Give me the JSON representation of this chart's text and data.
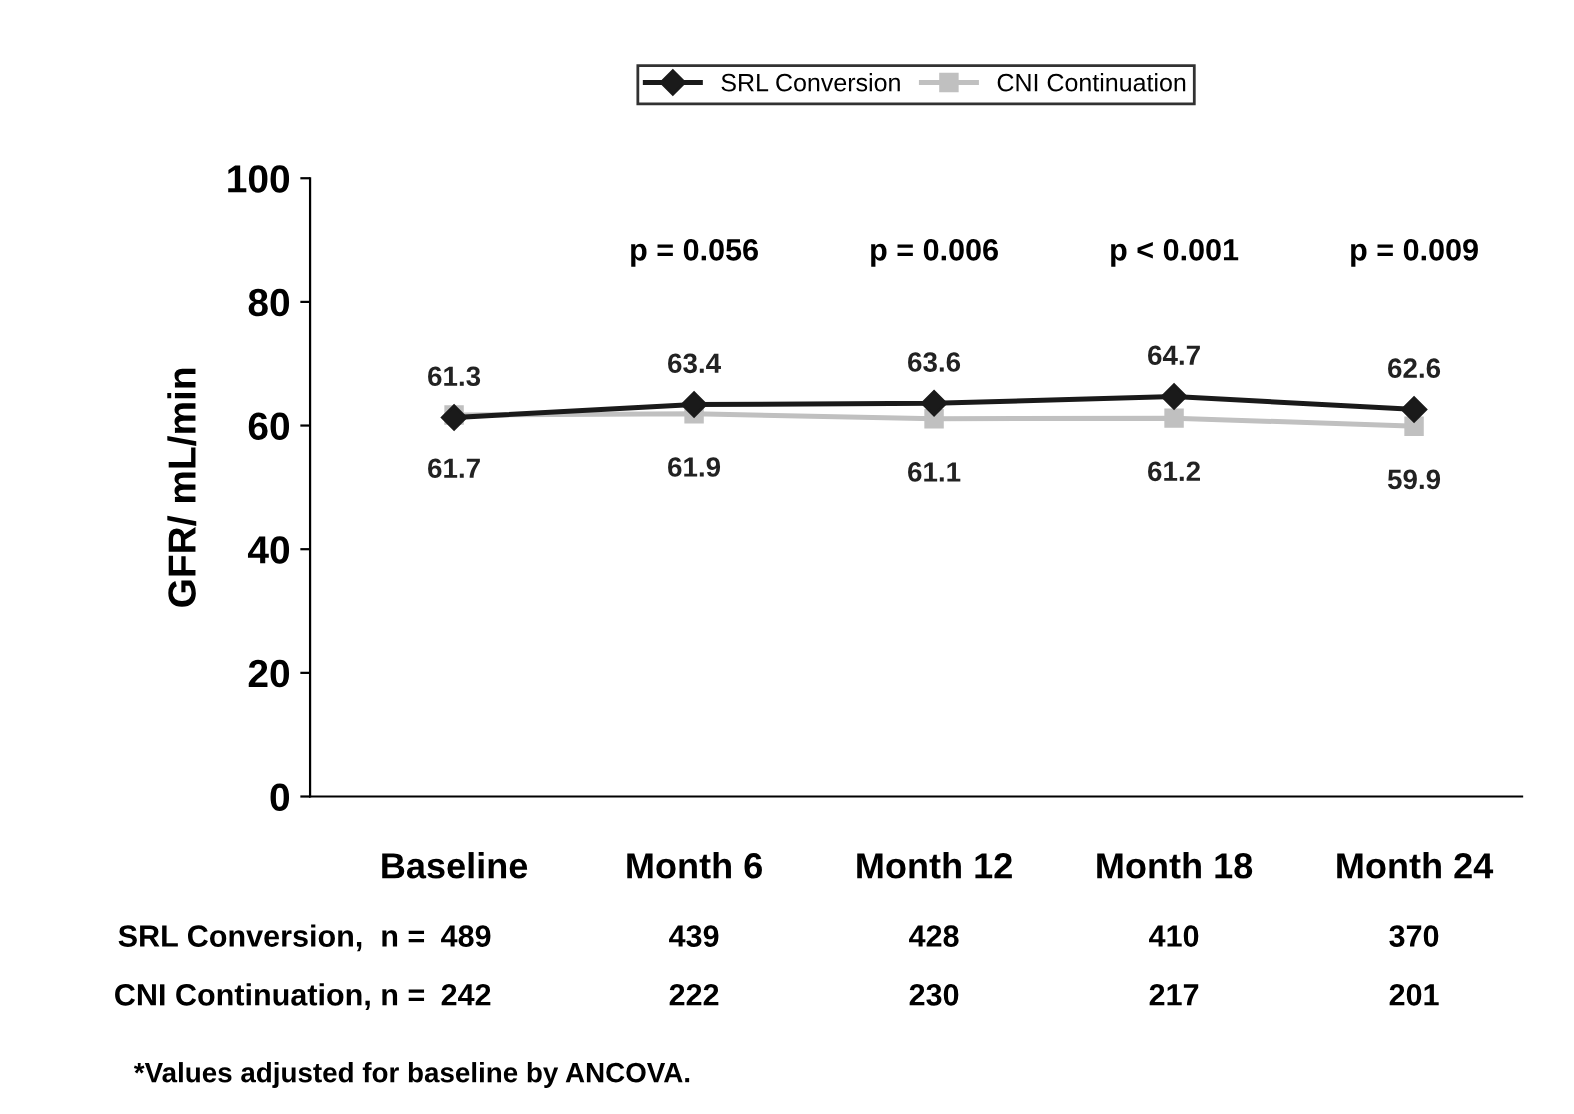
{
  "chart_data": {
    "type": "line",
    "ylabel": "GFR/ mL/min",
    "categories": [
      "Baseline",
      "Month 6",
      "Month 12",
      "Month 18",
      "Month 24"
    ],
    "ylim": [
      0,
      100
    ],
    "yticks": [
      0,
      20,
      40,
      60,
      80,
      100
    ],
    "grid": false,
    "legend": "top",
    "line_style": "solid",
    "series": [
      {
        "name": "SRL Conversion",
        "color": "#1a1a1a",
        "marker": "diamond",
        "values": [
          61.3,
          63.4,
          63.6,
          64.7,
          62.6
        ],
        "value_labels": [
          "61.3",
          "63.4",
          "63.6",
          "64.7",
          "62.6"
        ]
      },
      {
        "name": "CNI Continuation",
        "color": "#c0c0c0",
        "marker": "square",
        "values": [
          61.7,
          61.9,
          61.1,
          61.2,
          59.9
        ],
        "value_labels": [
          "61.7",
          "61.9",
          "61.1",
          "61.2",
          "59.9"
        ]
      }
    ],
    "annotations": [
      "p = 0.056",
      "p = 0.006",
      "p < 0.001",
      "p = 0.009",
      "SRL Conversion,  n =",
      "489",
      "439",
      "428",
      "410",
      "370",
      "CNI Continuation, n =",
      "242",
      "222",
      "230",
      "217",
      "201",
      "*Values adjusted for baseline by ANCOVA."
    ]
  }
}
